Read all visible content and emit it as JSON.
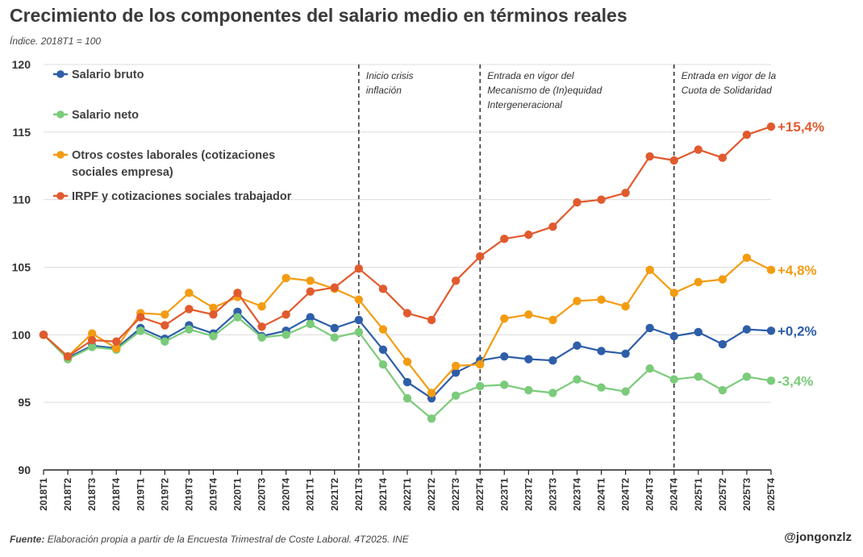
{
  "header": {
    "title": "Crecimiento de los componentes del salario medio en términos reales",
    "subtitle": "Índice. 2018T1 = 100"
  },
  "footer": {
    "source_label": "Fuente:",
    "source_text": "Elaboración propia a partir de la Encuesta Trimestral de Coste Laboral. 4T2025. INE",
    "handle": "@jongonzlz"
  },
  "chart_data": {
    "type": "line",
    "title": "Crecimiento de los componentes del salario medio en términos reales",
    "subtitle": "Índice. 2018T1 = 100",
    "ylim": [
      90,
      120
    ],
    "yticks": [
      90,
      95,
      100,
      105,
      110,
      115,
      120
    ],
    "grid": true,
    "legend_position": "top-left",
    "x": [
      "2018T1",
      "2018T2",
      "2018T3",
      "2018T4",
      "2019T1",
      "2019T2",
      "2019T3",
      "2019T4",
      "2020T1",
      "2020T3",
      "2020T4",
      "2021T1",
      "2021T2",
      "2021T3",
      "2021T4",
      "2022T1",
      "2022T2",
      "2022T3",
      "2022T4",
      "2023T1",
      "2023T2",
      "2023T3",
      "2023T4",
      "2024T1",
      "2024T2",
      "2024T3",
      "2024T4",
      "2025T1",
      "2025T2",
      "2025T3",
      "2025T4"
    ],
    "series": [
      {
        "name": "Salario bruto",
        "color": "#2e5ea8",
        "end_label": "+0,2%",
        "values": [
          100.0,
          98.3,
          99.2,
          99.0,
          100.5,
          99.7,
          100.7,
          100.1,
          101.7,
          99.9,
          100.3,
          101.3,
          100.5,
          101.1,
          98.9,
          96.5,
          95.3,
          97.2,
          98.1,
          98.4,
          98.2,
          98.1,
          99.2,
          98.8,
          98.6,
          100.5,
          99.9,
          100.2,
          99.3,
          100.4,
          100.3
        ]
      },
      {
        "name": "Salario neto",
        "color": "#7acb7a",
        "end_label": "-3,4%",
        "values": [
          100.0,
          98.2,
          99.1,
          98.9,
          100.3,
          99.5,
          100.4,
          99.9,
          101.3,
          99.8,
          100.0,
          100.8,
          99.8,
          100.2,
          97.8,
          95.3,
          93.8,
          95.5,
          96.2,
          96.3,
          95.9,
          95.7,
          96.7,
          96.1,
          95.8,
          97.5,
          96.7,
          96.9,
          95.9,
          96.9,
          96.6
        ]
      },
      {
        "name": "Otros costes laborales (cotizaciones sociales empresa)",
        "legend_lines": [
          "Otros costes laborales (cotizaciones",
          "sociales empresa)"
        ],
        "color": "#f39c12",
        "end_label": "+4,8%",
        "values": [
          100.0,
          98.4,
          100.1,
          99.0,
          101.6,
          101.5,
          103.1,
          102.0,
          102.8,
          102.1,
          104.2,
          104.0,
          103.4,
          102.6,
          100.4,
          98.0,
          95.7,
          97.7,
          97.8,
          101.2,
          101.5,
          101.1,
          102.5,
          102.6,
          102.1,
          104.8,
          103.1,
          103.9,
          104.1,
          105.7,
          104.8
        ]
      },
      {
        "name": "IRPF y cotizaciones sociales trabajador",
        "color": "#e15a2e",
        "end_label": "+15,4%",
        "values": [
          100.0,
          98.4,
          99.6,
          99.5,
          101.3,
          100.7,
          101.9,
          101.5,
          103.1,
          100.6,
          101.5,
          103.2,
          103.5,
          104.9,
          103.4,
          101.6,
          101.1,
          104.0,
          105.8,
          107.1,
          107.4,
          108.0,
          109.8,
          110.0,
          110.5,
          113.2,
          112.9,
          113.7,
          113.1,
          114.8,
          115.4
        ]
      }
    ],
    "annotations": [
      {
        "at": "2021T3",
        "lines": [
          "Inicio crisis",
          "inflación"
        ]
      },
      {
        "at": "2022T4",
        "lines": [
          "Entrada en vigor del",
          "Mecanismo de (In)equidad",
          "Intergeneracional"
        ]
      },
      {
        "at": "2024T4",
        "lines": [
          "Entrada en vigor de la",
          "Cuota de Solidaridad"
        ]
      }
    ]
  }
}
